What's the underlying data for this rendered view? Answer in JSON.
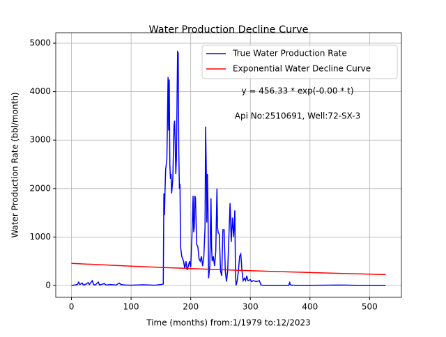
{
  "chart_data": {
    "type": "line",
    "title": "Water Production Decline Curve",
    "xlabel": "Time (months) from:1/1979 to:12/2023",
    "ylabel": "Water Production Rate (bbl/month)",
    "annotations": [
      "y = 456.33 * exp(-0.00 * t)",
      "Api No:2510691, Well:72-SX-3"
    ],
    "series": [
      {
        "name": "True Water Production Rate",
        "color": "#0000ff",
        "x": [
          0,
          5,
          10,
          12,
          14,
          18,
          20,
          25,
          28,
          30,
          35,
          37,
          40,
          45,
          47,
          55,
          58,
          65,
          75,
          80,
          83,
          90,
          100,
          120,
          140,
          150,
          154,
          155,
          156,
          157,
          158,
          160,
          162,
          163,
          164,
          165,
          166,
          167,
          168,
          170,
          172,
          173,
          174,
          175,
          176,
          178,
          179,
          180,
          181,
          182,
          183,
          185,
          188,
          190,
          192,
          194,
          196,
          198,
          200,
          202,
          203,
          204,
          205,
          206,
          207,
          208,
          210,
          212,
          214,
          216,
          218,
          220,
          222,
          224,
          225,
          226,
          227,
          228,
          229,
          230,
          232,
          234,
          235,
          236,
          238,
          240,
          242,
          244,
          245,
          246,
          248,
          250,
          252,
          254,
          256,
          258,
          260,
          262,
          264,
          266,
          268,
          270,
          272,
          274,
          275,
          276,
          278,
          280,
          282,
          284,
          286,
          288,
          290,
          292,
          294,
          296,
          300,
          302,
          305,
          310,
          315,
          318,
          320,
          340,
          364,
          366,
          367,
          380,
          420,
          450,
          470,
          500,
          527
        ],
        "values": [
          0,
          10,
          20,
          70,
          20,
          50,
          10,
          30,
          60,
          20,
          100,
          20,
          10,
          70,
          10,
          40,
          10,
          20,
          10,
          50,
          20,
          10,
          5,
          15,
          5,
          20,
          30,
          1900,
          1450,
          2000,
          2400,
          2600,
          4300,
          3200,
          4250,
          2500,
          2200,
          2300,
          1900,
          2200,
          3300,
          3400,
          2900,
          2300,
          2600,
          4820,
          4800,
          2800,
          2000,
          2100,
          800,
          600,
          500,
          350,
          500,
          320,
          400,
          500,
          380,
          1000,
          1400,
          1850,
          1100,
          1200,
          1850,
          1800,
          850,
          800,
          550,
          500,
          600,
          400,
          600,
          1200,
          3280,
          2500,
          1300,
          2300,
          1600,
          150,
          400,
          1800,
          800,
          500,
          600,
          400,
          700,
          2000,
          1200,
          1100,
          1050,
          300,
          200,
          1150,
          1150,
          300,
          80,
          300,
          1000,
          1700,
          900,
          1400,
          1000,
          1550,
          300,
          0,
          100,
          300,
          600,
          650,
          300,
          100,
          150,
          100,
          200,
          100,
          120,
          80,
          100,
          80,
          100,
          10,
          5,
          0,
          0,
          60,
          10,
          0,
          5,
          10,
          5,
          0,
          0
        ]
      },
      {
        "name": "Exponential Water Decline Curve",
        "color": "#ff0000",
        "x": [
          0,
          100,
          200,
          300,
          400,
          500,
          527
        ],
        "values": [
          456,
          399,
          349,
          305,
          267,
          233,
          225
        ]
      }
    ],
    "xlim": [
      -26.35,
      553.35
    ],
    "xticks": [
      0,
      100,
      200,
      300,
      400,
      500
    ],
    "ylim": [
      -244,
      5216
    ],
    "yticks": [
      0,
      1000,
      2000,
      3000,
      4000,
      5000
    ],
    "grid": true,
    "legend": "upper right"
  }
}
